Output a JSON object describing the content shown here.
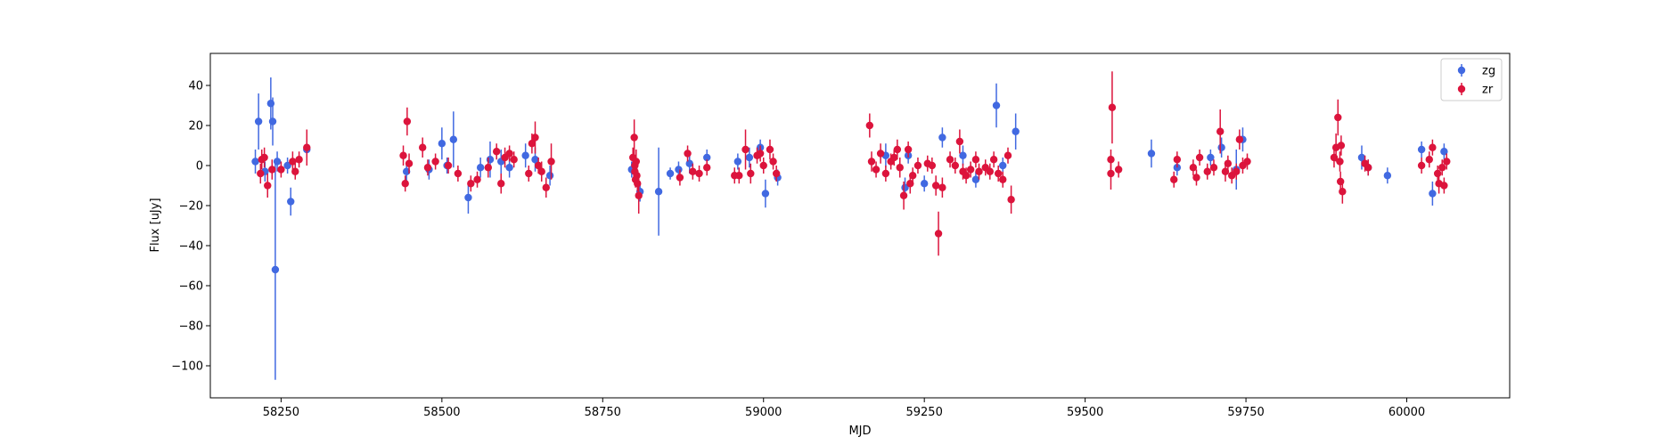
{
  "chart_data": {
    "type": "scatter",
    "title": "",
    "xlabel": "MJD",
    "ylabel": "Flux [uJy]",
    "xlim": [
      58140,
      60160
    ],
    "ylim": [
      -116,
      56
    ],
    "x_ticks": [
      58250,
      58500,
      58750,
      59000,
      59250,
      59500,
      59750,
      60000
    ],
    "x_tick_labels": [
      "58250",
      "58500",
      "58750",
      "59000",
      "59250",
      "59500",
      "59750",
      "60000"
    ],
    "y_ticks": [
      40,
      20,
      0,
      -20,
      -40,
      -60,
      -80,
      -100
    ],
    "y_tick_labels": [
      "40",
      "20",
      "0",
      "−20",
      "−40",
      "−60",
      "−80",
      "−100"
    ],
    "grid": false,
    "legend_position": "top-right",
    "series": [
      {
        "name": "zg",
        "color": "#4169e1",
        "points": [
          {
            "x": 58210,
            "y": 2,
            "err": 6
          },
          {
            "x": 58215,
            "y": 22,
            "err": 14
          },
          {
            "x": 58225,
            "y": -3,
            "err": 5
          },
          {
            "x": 58234,
            "y": 31,
            "err": 13
          },
          {
            "x": 58237,
            "y": 22,
            "err": 12
          },
          {
            "x": 58241,
            "y": -52,
            "err": 55
          },
          {
            "x": 58244,
            "y": 2,
            "err": 5
          },
          {
            "x": 58260,
            "y": 0,
            "err": 4
          },
          {
            "x": 58265,
            "y": -18,
            "err": 7
          },
          {
            "x": 58290,
            "y": 8,
            "err": 4
          },
          {
            "x": 58445,
            "y": -3,
            "err": 5
          },
          {
            "x": 58480,
            "y": -2,
            "err": 5
          },
          {
            "x": 58500,
            "y": 11,
            "err": 8
          },
          {
            "x": 58508,
            "y": 0,
            "err": 4
          },
          {
            "x": 58518,
            "y": 13,
            "err": 14
          },
          {
            "x": 58541,
            "y": -16,
            "err": 8
          },
          {
            "x": 58560,
            "y": -1,
            "err": 5
          },
          {
            "x": 58575,
            "y": 3,
            "err": 9
          },
          {
            "x": 58592,
            "y": 2,
            "err": 6
          },
          {
            "x": 58605,
            "y": -1,
            "err": 5
          },
          {
            "x": 58630,
            "y": 5,
            "err": 6
          },
          {
            "x": 58645,
            "y": 3,
            "err": 6
          },
          {
            "x": 58668,
            "y": -5,
            "err": 5
          },
          {
            "x": 58795,
            "y": -2,
            "err": 4
          },
          {
            "x": 58808,
            "y": -13,
            "err": 5
          },
          {
            "x": 58837,
            "y": -13,
            "err": 22
          },
          {
            "x": 58855,
            "y": -4,
            "err": 3
          },
          {
            "x": 58868,
            "y": -2,
            "err": 4
          },
          {
            "x": 58885,
            "y": 1,
            "err": 5
          },
          {
            "x": 58912,
            "y": 4,
            "err": 4
          },
          {
            "x": 58960,
            "y": 2,
            "err": 4
          },
          {
            "x": 58978,
            "y": 4,
            "err": 5
          },
          {
            "x": 58995,
            "y": 9,
            "err": 4
          },
          {
            "x": 59003,
            "y": -14,
            "err": 7
          },
          {
            "x": 59022,
            "y": -6,
            "err": 4
          },
          {
            "x": 59190,
            "y": 5,
            "err": 6
          },
          {
            "x": 59220,
            "y": -11,
            "err": 5
          },
          {
            "x": 59225,
            "y": 5,
            "err": 4
          },
          {
            "x": 59250,
            "y": -9,
            "err": 4
          },
          {
            "x": 59278,
            "y": 14,
            "err": 5
          },
          {
            "x": 59310,
            "y": 5,
            "err": 5
          },
          {
            "x": 59330,
            "y": -7,
            "err": 4
          },
          {
            "x": 59362,
            "y": 30,
            "err": 11
          },
          {
            "x": 59372,
            "y": 0,
            "err": 4
          },
          {
            "x": 59392,
            "y": 17,
            "err": 9
          },
          {
            "x": 59603,
            "y": 6,
            "err": 7
          },
          {
            "x": 59643,
            "y": -1,
            "err": 4
          },
          {
            "x": 59695,
            "y": 4,
            "err": 4
          },
          {
            "x": 59712,
            "y": 9,
            "err": 5
          },
          {
            "x": 59735,
            "y": -2,
            "err": 10
          },
          {
            "x": 59745,
            "y": 13,
            "err": 6
          },
          {
            "x": 59930,
            "y": 4,
            "err": 6
          },
          {
            "x": 59940,
            "y": -1,
            "err": 4
          },
          {
            "x": 59970,
            "y": -5,
            "err": 4
          },
          {
            "x": 60023,
            "y": 8,
            "err": 4
          },
          {
            "x": 60040,
            "y": -14,
            "err": 6
          },
          {
            "x": 60058,
            "y": 7,
            "err": 4
          }
        ]
      },
      {
        "name": "zr",
        "color": "#dc143c",
        "points": [
          {
            "x": 58218,
            "y": -4,
            "err": 5
          },
          {
            "x": 58220,
            "y": 3,
            "err": 5
          },
          {
            "x": 58224,
            "y": 4,
            "err": 5
          },
          {
            "x": 58229,
            "y": -10,
            "err": 6
          },
          {
            "x": 58236,
            "y": -2,
            "err": 5
          },
          {
            "x": 58250,
            "y": -2,
            "err": 4
          },
          {
            "x": 58268,
            "y": 2,
            "err": 5
          },
          {
            "x": 58272,
            "y": -3,
            "err": 4
          },
          {
            "x": 58278,
            "y": 3,
            "err": 4
          },
          {
            "x": 58290,
            "y": 9,
            "err": 9
          },
          {
            "x": 58440,
            "y": 5,
            "err": 5
          },
          {
            "x": 58443,
            "y": -9,
            "err": 4
          },
          {
            "x": 58446,
            "y": 22,
            "err": 7
          },
          {
            "x": 58449,
            "y": 1,
            "err": 5
          },
          {
            "x": 58470,
            "y": 9,
            "err": 5
          },
          {
            "x": 58478,
            "y": -1,
            "err": 4
          },
          {
            "x": 58490,
            "y": 2,
            "err": 4
          },
          {
            "x": 58510,
            "y": 0,
            "err": 4
          },
          {
            "x": 58525,
            "y": -4,
            "err": 4
          },
          {
            "x": 58545,
            "y": -9,
            "err": 4
          },
          {
            "x": 58555,
            "y": -7,
            "err": 4
          },
          {
            "x": 58572,
            "y": -1,
            "err": 5
          },
          {
            "x": 58585,
            "y": 7,
            "err": 4
          },
          {
            "x": 58592,
            "y": -9,
            "err": 5
          },
          {
            "x": 58598,
            "y": 4,
            "err": 5
          },
          {
            "x": 58605,
            "y": 6,
            "err": 4
          },
          {
            "x": 58612,
            "y": 3,
            "err": 4
          },
          {
            "x": 58635,
            "y": -4,
            "err": 4
          },
          {
            "x": 58640,
            "y": 11,
            "err": 5
          },
          {
            "x": 58645,
            "y": 14,
            "err": 8
          },
          {
            "x": 58650,
            "y": 0,
            "err": 4
          },
          {
            "x": 58655,
            "y": -3,
            "err": 5
          },
          {
            "x": 58662,
            "y": -11,
            "err": 5
          },
          {
            "x": 58670,
            "y": 2,
            "err": 9
          },
          {
            "x": 58797,
            "y": 4,
            "err": 5
          },
          {
            "x": 58799,
            "y": 14,
            "err": 9
          },
          {
            "x": 58800,
            "y": 0,
            "err": 5
          },
          {
            "x": 58800,
            "y": -3,
            "err": 4
          },
          {
            "x": 58801,
            "y": -7,
            "err": 4
          },
          {
            "x": 58802,
            "y": 2,
            "err": 6
          },
          {
            "x": 58803,
            "y": -5,
            "err": 4
          },
          {
            "x": 58804,
            "y": -9,
            "err": 4
          },
          {
            "x": 58806,
            "y": -15,
            "err": 9
          },
          {
            "x": 58870,
            "y": -6,
            "err": 4
          },
          {
            "x": 58882,
            "y": 6,
            "err": 4
          },
          {
            "x": 58890,
            "y": -3,
            "err": 4
          },
          {
            "x": 58900,
            "y": -4,
            "err": 4
          },
          {
            "x": 58912,
            "y": -1,
            "err": 4
          },
          {
            "x": 58955,
            "y": -5,
            "err": 4
          },
          {
            "x": 58962,
            "y": -5,
            "err": 4
          },
          {
            "x": 58972,
            "y": 8,
            "err": 10
          },
          {
            "x": 58980,
            "y": -4,
            "err": 5
          },
          {
            "x": 58990,
            "y": 5,
            "err": 4
          },
          {
            "x": 58995,
            "y": 6,
            "err": 4
          },
          {
            "x": 59000,
            "y": 0,
            "err": 4
          },
          {
            "x": 59010,
            "y": 8,
            "err": 5
          },
          {
            "x": 59015,
            "y": 2,
            "err": 4
          },
          {
            "x": 59020,
            "y": -4,
            "err": 4
          },
          {
            "x": 59165,
            "y": 20,
            "err": 6
          },
          {
            "x": 59168,
            "y": 2,
            "err": 5
          },
          {
            "x": 59175,
            "y": -2,
            "err": 4
          },
          {
            "x": 59182,
            "y": 6,
            "err": 5
          },
          {
            "x": 59190,
            "y": -4,
            "err": 4
          },
          {
            "x": 59198,
            "y": 2,
            "err": 4
          },
          {
            "x": 59203,
            "y": 4,
            "err": 4
          },
          {
            "x": 59208,
            "y": 8,
            "err": 5
          },
          {
            "x": 59212,
            "y": -1,
            "err": 5
          },
          {
            "x": 59218,
            "y": -15,
            "err": 7
          },
          {
            "x": 59225,
            "y": 8,
            "err": 4
          },
          {
            "x": 59228,
            "y": -9,
            "err": 5
          },
          {
            "x": 59232,
            "y": -5,
            "err": 4
          },
          {
            "x": 59240,
            "y": 0,
            "err": 4
          },
          {
            "x": 59255,
            "y": 1,
            "err": 4
          },
          {
            "x": 59262,
            "y": 0,
            "err": 4
          },
          {
            "x": 59268,
            "y": -10,
            "err": 5
          },
          {
            "x": 59272,
            "y": -34,
            "err": 11
          },
          {
            "x": 59278,
            "y": -11,
            "err": 5
          },
          {
            "x": 59290,
            "y": 3,
            "err": 4
          },
          {
            "x": 59298,
            "y": 0,
            "err": 4
          },
          {
            "x": 59305,
            "y": 12,
            "err": 6
          },
          {
            "x": 59310,
            "y": -3,
            "err": 4
          },
          {
            "x": 59315,
            "y": -5,
            "err": 4
          },
          {
            "x": 59322,
            "y": -2,
            "err": 4
          },
          {
            "x": 59330,
            "y": 3,
            "err": 4
          },
          {
            "x": 59335,
            "y": -3,
            "err": 4
          },
          {
            "x": 59345,
            "y": -1,
            "err": 4
          },
          {
            "x": 59352,
            "y": -3,
            "err": 4
          },
          {
            "x": 59358,
            "y": 3,
            "err": 4
          },
          {
            "x": 59365,
            "y": -4,
            "err": 4
          },
          {
            "x": 59372,
            "y": -7,
            "err": 4
          },
          {
            "x": 59380,
            "y": 5,
            "err": 4
          },
          {
            "x": 59385,
            "y": -17,
            "err": 7
          },
          {
            "x": 59540,
            "y": 3,
            "err": 5
          },
          {
            "x": 59540,
            "y": -4,
            "err": 8
          },
          {
            "x": 59542,
            "y": 29,
            "err": 18
          },
          {
            "x": 59552,
            "y": -2,
            "err": 4
          },
          {
            "x": 59638,
            "y": -7,
            "err": 4
          },
          {
            "x": 59643,
            "y": 3,
            "err": 4
          },
          {
            "x": 59668,
            "y": -1,
            "err": 4
          },
          {
            "x": 59673,
            "y": -6,
            "err": 4
          },
          {
            "x": 59678,
            "y": 4,
            "err": 4
          },
          {
            "x": 59690,
            "y": -3,
            "err": 4
          },
          {
            "x": 59700,
            "y": -1,
            "err": 4
          },
          {
            "x": 59710,
            "y": 17,
            "err": 11
          },
          {
            "x": 59718,
            "y": -3,
            "err": 5
          },
          {
            "x": 59722,
            "y": 1,
            "err": 4
          },
          {
            "x": 59728,
            "y": -5,
            "err": 4
          },
          {
            "x": 59735,
            "y": -3,
            "err": 4
          },
          {
            "x": 59740,
            "y": 13,
            "err": 5
          },
          {
            "x": 59745,
            "y": 0,
            "err": 4
          },
          {
            "x": 59752,
            "y": 2,
            "err": 4
          },
          {
            "x": 59887,
            "y": 4,
            "err": 5
          },
          {
            "x": 59890,
            "y": 9,
            "err": 7
          },
          {
            "x": 59893,
            "y": 24,
            "err": 9
          },
          {
            "x": 59896,
            "y": 2,
            "err": 5
          },
          {
            "x": 59897,
            "y": -8,
            "err": 5
          },
          {
            "x": 59898,
            "y": 10,
            "err": 5
          },
          {
            "x": 59900,
            "y": -13,
            "err": 6
          },
          {
            "x": 59935,
            "y": 1,
            "err": 4
          },
          {
            "x": 59940,
            "y": -1,
            "err": 4
          },
          {
            "x": 60023,
            "y": 0,
            "err": 4
          },
          {
            "x": 60035,
            "y": 3,
            "err": 4
          },
          {
            "x": 60040,
            "y": 9,
            "err": 4
          },
          {
            "x": 60048,
            "y": -4,
            "err": 4
          },
          {
            "x": 60050,
            "y": -9,
            "err": 5
          },
          {
            "x": 60055,
            "y": -1,
            "err": 4
          },
          {
            "x": 60058,
            "y": -10,
            "err": 4
          },
          {
            "x": 60062,
            "y": 2,
            "err": 4
          }
        ]
      }
    ]
  }
}
